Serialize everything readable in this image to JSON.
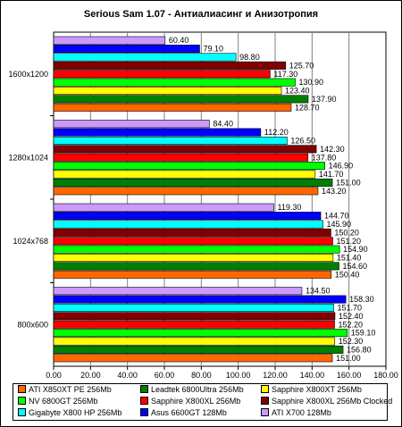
{
  "chart_data": {
    "type": "bar",
    "orientation": "horizontal",
    "title": "Serious Sam 1.07 - Антиалиасинг и Анизотропия",
    "xlabel": "",
    "ylabel": "",
    "xlim": [
      0,
      180
    ],
    "xticks": [
      "0.00",
      "20.00",
      "40.00",
      "60.00",
      "80.00",
      "100.00",
      "120.00",
      "140.00",
      "160.00",
      "180.00"
    ],
    "grid": true,
    "legend_position": "bottom",
    "categories": [
      "1600x1200",
      "1280x1024",
      "1024x768",
      "800x600"
    ],
    "series": [
      {
        "name": "ATI X850XT PE 256Mb",
        "color": "#FF6600",
        "values": [
          128.7,
          143.2,
          150.4,
          151.0
        ]
      },
      {
        "name": "Leadtek 6800Ultra 256Mb",
        "color": "#008000",
        "values": [
          137.9,
          151.0,
          154.6,
          156.8
        ]
      },
      {
        "name": "Sapphire X800XT 256Mb",
        "color": "#FFFF00",
        "values": [
          123.4,
          141.7,
          151.4,
          152.3
        ]
      },
      {
        "name": "NV 6800GT 256Mb",
        "color": "#00FF00",
        "values": [
          130.9,
          146.9,
          154.9,
          159.1
        ]
      },
      {
        "name": "Sapphire X800XL 256Mb",
        "color": "#FF0000",
        "values": [
          117.3,
          137.8,
          151.2,
          152.2
        ]
      },
      {
        "name": "Sapphire X800XL 256Mb Clocked",
        "color": "#800000",
        "values": [
          125.7,
          142.3,
          150.2,
          152.4
        ]
      },
      {
        "name": "Gigabyte X800 HP 256Mb",
        "color": "#00FFFF",
        "values": [
          98.8,
          126.5,
          145.9,
          151.7
        ]
      },
      {
        "name": "Asus 6600GT 128Mb",
        "color": "#0000FF",
        "values": [
          79.1,
          112.2,
          144.7,
          158.3
        ]
      },
      {
        "name": "ATI X700 128Mb",
        "color": "#CC99FF",
        "values": [
          60.4,
          84.4,
          119.3,
          134.5
        ]
      }
    ]
  }
}
